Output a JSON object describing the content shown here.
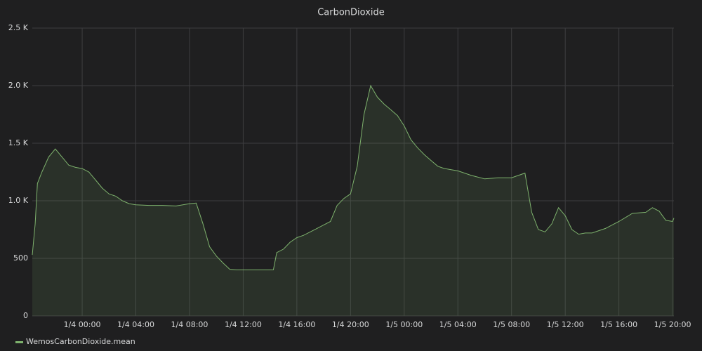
{
  "chart_data": {
    "type": "line",
    "title": "CarbonDioxide",
    "x": [
      "1/3 20:17",
      "1/3 20:30",
      "1/3 20:40",
      "1/3 21:00",
      "1/3 21:30",
      "1/3 22:00",
      "1/3 22:30",
      "1/3 23:00",
      "1/3 23:30",
      "1/4 00:00",
      "1/4 00:30",
      "1/4 01:00",
      "1/4 01:30",
      "1/4 02:00",
      "1/4 02:30",
      "1/4 03:00",
      "1/4 03:30",
      "1/4 04:00",
      "1/4 05:00",
      "1/4 06:00",
      "1/4 07:00",
      "1/4 08:00",
      "1/4 08:30",
      "1/4 09:00",
      "1/4 09:30",
      "1/4 10:00",
      "1/4 10:30",
      "1/4 11:00",
      "1/4 11:30",
      "1/4 12:00",
      "1/4 13:00",
      "1/4 14:00",
      "1/4 14:15",
      "1/4 14:30",
      "1/4 15:00",
      "1/4 15:30",
      "1/4 16:00",
      "1/4 16:30",
      "1/4 17:00",
      "1/4 17:30",
      "1/4 18:00",
      "1/4 18:30",
      "1/4 19:00",
      "1/4 19:30",
      "1/4 20:00",
      "1/4 20:30",
      "1/4 21:00",
      "1/4 21:30",
      "1/4 22:00",
      "1/4 22:30",
      "1/4 23:00",
      "1/4 23:30",
      "1/5 00:00",
      "1/5 00:30",
      "1/5 01:00",
      "1/5 01:30",
      "1/5 02:00",
      "1/5 02:30",
      "1/5 03:00",
      "1/5 03:30",
      "1/5 04:00",
      "1/5 05:00",
      "1/5 06:00",
      "1/5 07:00",
      "1/5 08:00",
      "1/5 08:30",
      "1/5 09:00",
      "1/5 09:30",
      "1/5 10:00",
      "1/5 10:30",
      "1/5 11:00",
      "1/5 11:30",
      "1/5 12:00",
      "1/5 12:30",
      "1/5 13:00",
      "1/5 13:30",
      "1/5 14:00",
      "1/5 15:00",
      "1/5 16:00",
      "1/5 17:00",
      "1/5 18:00",
      "1/5 18:30",
      "1/5 19:00",
      "1/5 19:30",
      "1/5 20:00",
      "1/5 20:06"
    ],
    "series": [
      {
        "name": "WemosCarbonDioxide.mean",
        "color": "#7eb26d",
        "values": [
          530,
          800,
          1150,
          1250,
          1380,
          1450,
          1380,
          1310,
          1290,
          1280,
          1250,
          1180,
          1110,
          1060,
          1040,
          1000,
          975,
          965,
          960,
          960,
          955,
          975,
          980,
          800,
          600,
          520,
          460,
          405,
          400,
          400,
          400,
          400,
          400,
          550,
          580,
          640,
          680,
          700,
          730,
          760,
          790,
          820,
          960,
          1020,
          1060,
          1300,
          1750,
          2000,
          1900,
          1840,
          1790,
          1740,
          1650,
          1530,
          1460,
          1400,
          1350,
          1300,
          1280,
          1270,
          1260,
          1220,
          1190,
          1200,
          1200,
          1220,
          1240,
          900,
          750,
          730,
          800,
          940,
          870,
          750,
          710,
          720,
          720,
          760,
          820,
          890,
          900,
          940,
          910,
          830,
          820,
          850
        ]
      }
    ],
    "xlim": [
      "1/3 20:17",
      "1/5 20:06"
    ],
    "xticks": [
      "1/4 00:00",
      "1/4 04:00",
      "1/4 08:00",
      "1/4 12:00",
      "1/4 16:00",
      "1/4 20:00",
      "1/5 00:00",
      "1/5 04:00",
      "1/5 08:00",
      "1/5 12:00",
      "1/5 16:00",
      "1/5 20:00"
    ],
    "ylim": [
      0,
      2500
    ],
    "yticks": [
      0,
      500,
      {
        "value": 1000,
        "label": "1.0 K"
      },
      {
        "value": 1500,
        "label": "1.5 K"
      },
      {
        "value": 2000,
        "label": "2.0 K"
      },
      {
        "value": 2500,
        "label": "2.5 K"
      }
    ],
    "grid": true
  }
}
